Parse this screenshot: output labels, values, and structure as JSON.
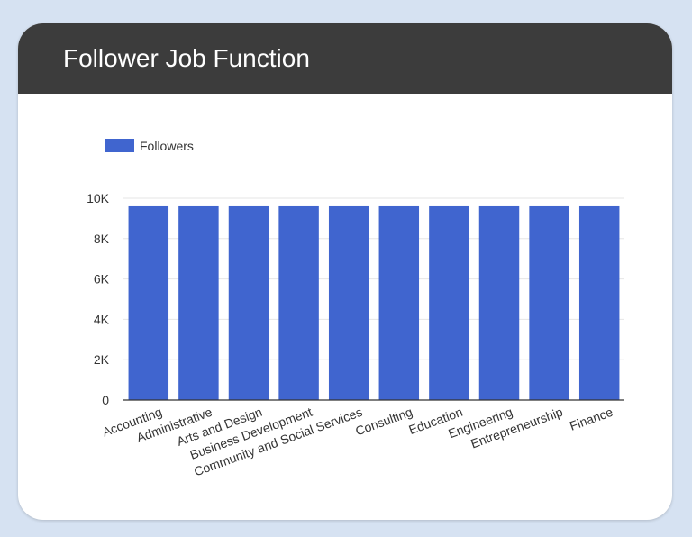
{
  "card": {
    "title": "Follower Job Function"
  },
  "colors": {
    "background": "#d6e2f2",
    "header": "#3c3c3c",
    "bar": "#4065cf",
    "grid": "#e6e6e6",
    "axis": "#333333"
  },
  "chart_data": {
    "type": "bar",
    "legend_position": "top-left",
    "grid": true,
    "series": [
      {
        "name": "Followers",
        "values": [
          9600,
          9600,
          9600,
          9600,
          9600,
          9600,
          9600,
          9600,
          9600,
          9600
        ]
      }
    ],
    "categories": [
      "Accounting",
      "Administrative",
      "Arts and Design",
      "Business Development",
      "Community and Social Services",
      "Consulting",
      "Education",
      "Engineering",
      "Entrepreneurship",
      "Finance"
    ],
    "yticks": [
      0,
      2000,
      4000,
      6000,
      8000,
      10000
    ],
    "ytick_labels": [
      "0",
      "2K",
      "4K",
      "6K",
      "8K",
      "10K"
    ],
    "ylim": [
      0,
      10000
    ]
  }
}
